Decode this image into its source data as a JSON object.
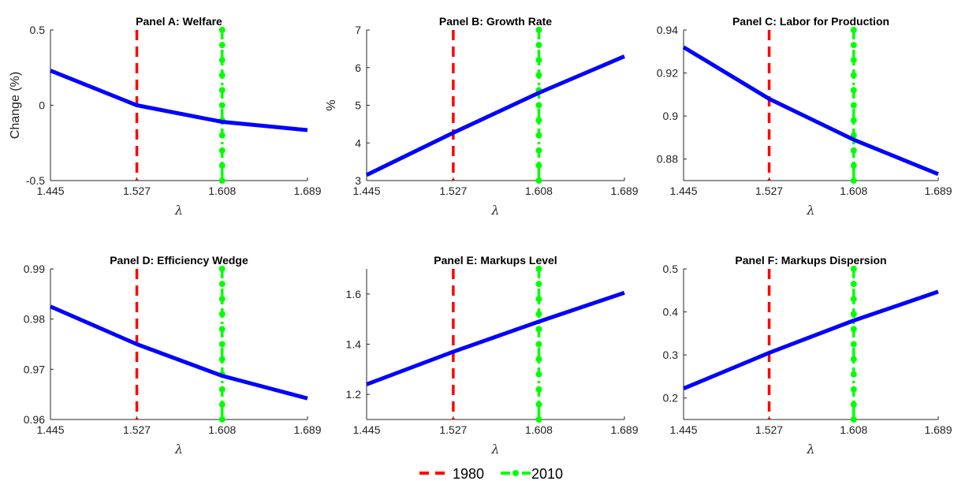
{
  "chart_data": [
    {
      "type": "line",
      "title": "Panel A: Welfare",
      "xlabel": "λ",
      "ylabel": "Change (%)",
      "xlim": [
        1.445,
        1.689
      ],
      "ylim": [
        -0.5,
        0.5
      ],
      "xticks": [
        "1.445",
        "1.527",
        "1.608",
        "1.689"
      ],
      "yticks": [
        "-0.5",
        "0",
        "0.5"
      ],
      "series": [
        {
          "x": [
            1.445,
            1.527,
            1.608,
            1.689
          ],
          "y": [
            0.23,
            0.0,
            -0.11,
            -0.165
          ],
          "color": "#0000ff"
        }
      ],
      "vlines": [
        {
          "name": "1980",
          "x": 1.527,
          "color": "#ff0000",
          "style": "dashed"
        },
        {
          "name": "2010",
          "x": 1.608,
          "color": "#00ff00",
          "style": "dash-dot with markers"
        }
      ]
    },
    {
      "type": "line",
      "title": "Panel B: Growth Rate",
      "xlabel": "λ",
      "ylabel": "%",
      "xlim": [
        1.445,
        1.689
      ],
      "ylim": [
        3,
        7
      ],
      "xticks": [
        "1.445",
        "1.527",
        "1.608",
        "1.689"
      ],
      "yticks": [
        "3",
        "4",
        "5",
        "6",
        "7"
      ],
      "series": [
        {
          "x": [
            1.445,
            1.527,
            1.608,
            1.689
          ],
          "y": [
            3.15,
            4.27,
            5.33,
            6.3
          ],
          "color": "#0000ff"
        }
      ],
      "vlines": [
        {
          "name": "1980",
          "x": 1.527,
          "color": "#ff0000",
          "style": "dashed"
        },
        {
          "name": "2010",
          "x": 1.608,
          "color": "#00ff00",
          "style": "dash-dot with markers"
        }
      ]
    },
    {
      "type": "line",
      "title": "Panel C: Labor for Production",
      "xlabel": "λ",
      "ylabel": "",
      "xlim": [
        1.445,
        1.689
      ],
      "ylim": [
        0.87,
        0.94
      ],
      "xticks": [
        "1.445",
        "1.527",
        "1.608",
        "1.689"
      ],
      "yticks": [
        "0.88",
        "0.9",
        "0.92",
        "0.94"
      ],
      "series": [
        {
          "x": [
            1.445,
            1.527,
            1.608,
            1.689
          ],
          "y": [
            0.932,
            0.908,
            0.889,
            0.873
          ],
          "color": "#0000ff"
        }
      ],
      "vlines": [
        {
          "name": "1980",
          "x": 1.527,
          "color": "#ff0000",
          "style": "dashed"
        },
        {
          "name": "2010",
          "x": 1.608,
          "color": "#00ff00",
          "style": "dash-dot with markers"
        }
      ]
    },
    {
      "type": "line",
      "title": "Panel D: Efficiency Wedge",
      "xlabel": "λ",
      "ylabel": "",
      "xlim": [
        1.445,
        1.689
      ],
      "ylim": [
        0.96,
        0.99
      ],
      "xticks": [
        "1.445",
        "1.527",
        "1.608",
        "1.689"
      ],
      "yticks": [
        "0.96",
        "0.97",
        "0.98",
        "0.99"
      ],
      "series": [
        {
          "x": [
            1.445,
            1.527,
            1.608,
            1.689
          ],
          "y": [
            0.9825,
            0.975,
            0.9687,
            0.9642
          ],
          "color": "#0000ff"
        }
      ],
      "vlines": [
        {
          "name": "1980",
          "x": 1.527,
          "color": "#ff0000",
          "style": "dashed"
        },
        {
          "name": "2010",
          "x": 1.608,
          "color": "#00ff00",
          "style": "dash-dot with markers"
        }
      ]
    },
    {
      "type": "line",
      "title": "Panel E: Markups Level",
      "xlabel": "λ",
      "ylabel": "",
      "xlim": [
        1.445,
        1.689
      ],
      "ylim": [
        1.1,
        1.7
      ],
      "xticks": [
        "1.445",
        "1.527",
        "1.608",
        "1.689"
      ],
      "yticks": [
        "1.2",
        "1.4",
        "1.6"
      ],
      "series": [
        {
          "x": [
            1.445,
            1.527,
            1.608,
            1.689
          ],
          "y": [
            1.24,
            1.37,
            1.49,
            1.605
          ],
          "color": "#0000ff"
        }
      ],
      "vlines": [
        {
          "name": "1980",
          "x": 1.527,
          "color": "#ff0000",
          "style": "dashed"
        },
        {
          "name": "2010",
          "x": 1.608,
          "color": "#00ff00",
          "style": "dash-dot with markers"
        }
      ]
    },
    {
      "type": "line",
      "title": "Panel F: Markups Dispersion",
      "xlabel": "λ",
      "ylabel": "",
      "xlim": [
        1.445,
        1.689
      ],
      "ylim": [
        0.15,
        0.5
      ],
      "xticks": [
        "1.445",
        "1.527",
        "1.608",
        "1.689"
      ],
      "yticks": [
        "0.2",
        "0.3",
        "0.4",
        "0.5"
      ],
      "series": [
        {
          "x": [
            1.445,
            1.527,
            1.608,
            1.689
          ],
          "y": [
            0.222,
            0.305,
            0.38,
            0.447
          ],
          "color": "#0000ff"
        }
      ],
      "vlines": [
        {
          "name": "1980",
          "x": 1.527,
          "color": "#ff0000",
          "style": "dashed"
        },
        {
          "name": "2010",
          "x": 1.608,
          "color": "#00ff00",
          "style": "dash-dot with markers"
        }
      ]
    }
  ],
  "legend": {
    "placement": "bottom-center",
    "items": [
      {
        "label": "1980",
        "color": "#ff0000",
        "style": "dashed"
      },
      {
        "label": "2010",
        "color": "#00ff00",
        "style": "dash-dot with markers"
      }
    ]
  }
}
